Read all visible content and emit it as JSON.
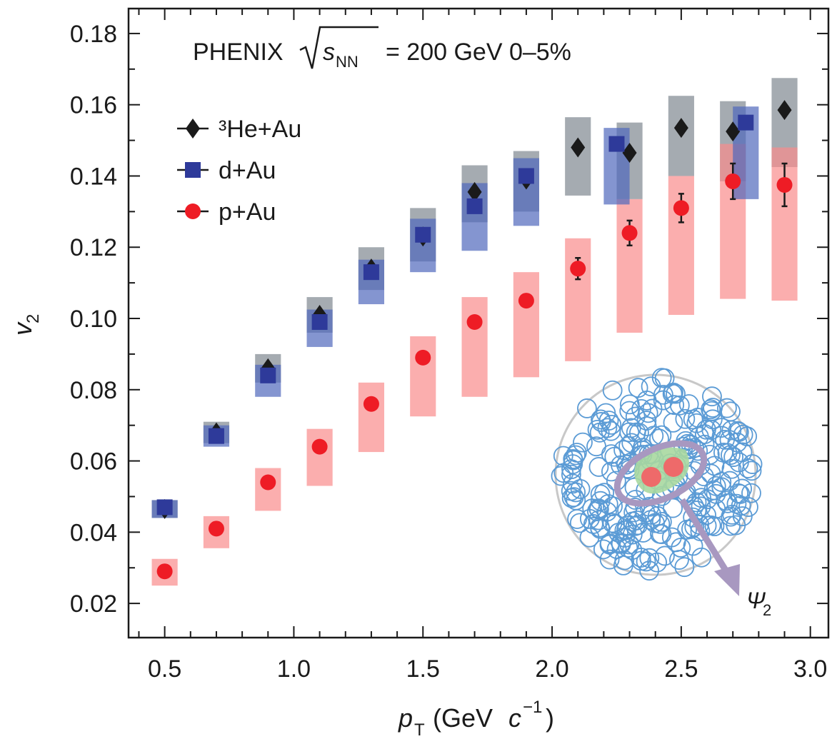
{
  "chart_data": {
    "type": "scatter",
    "title": "PHENIX",
    "title_sqrt": "s",
    "title_sub": "NN",
    "title_rest": "= 200 GeV 0–5%",
    "x_label": "p",
    "x_label_sub": "T",
    "x_label_rest": "(GeV",
    "x_label_c": "c",
    "x_label_sup": "−1",
    "x_label_end": ")",
    "y_label": "v",
    "y_label_sub": "2",
    "inset_label": "Ψ",
    "inset_label_sub": "2",
    "xlim": [
      0.36,
      3.07
    ],
    "ylim": [
      0.0104,
      0.187
    ],
    "xticks": [
      0.5,
      {
        "value": 1,
        "label": "1.0"
      },
      1.5,
      {
        "value": 2,
        "label": "2.0"
      },
      2.5,
      {
        "value": 3,
        "label": "3.0"
      }
    ],
    "xminorticks": [
      0.4,
      0.6,
      0.7,
      0.8,
      0.9,
      1.1,
      1.2,
      1.3,
      1.4,
      1.6,
      1.7,
      1.8,
      1.9,
      2.1,
      2.2,
      2.3,
      2.4,
      2.6,
      2.7,
      2.8,
      2.9
    ],
    "yticks": [
      0.02,
      0.04,
      0.06,
      0.08,
      {
        "value": 0.1,
        "label": "0.10"
      },
      0.12,
      0.14,
      0.16,
      0.18
    ],
    "yminorticks": [
      0.03,
      0.05,
      0.07,
      0.09,
      0.11,
      0.13,
      0.15,
      0.17
    ],
    "series": [
      {
        "name": "³He+Au",
        "color": "#1a1a1a",
        "marker": "diamond",
        "box_color": "#7f8890",
        "x": [
          0.5,
          0.7,
          0.9,
          1.1,
          1.3,
          1.5,
          1.7,
          1.9,
          2.1,
          2.3,
          2.5,
          2.7,
          2.9
        ],
        "values": [
          0.0465,
          0.068,
          0.086,
          0.101,
          0.114,
          0.123,
          0.1355,
          0.139,
          0.148,
          0.1465,
          0.1535,
          0.1525,
          0.1585
        ],
        "sys_low": [
          0.044,
          0.065,
          0.082,
          0.096,
          0.108,
          0.116,
          0.127,
          0.13,
          0.1345,
          0.1335,
          0.14,
          0.1385,
          0.1425
        ],
        "sys_high": [
          0.049,
          0.071,
          0.09,
          0.106,
          0.12,
          0.131,
          0.143,
          0.147,
          0.1565,
          0.155,
          0.1625,
          0.161,
          0.1675
        ]
      },
      {
        "name": "p+Au",
        "color": "#ee1c25",
        "marker": "circle",
        "box_color": "#f98c8c",
        "x": [
          0.5,
          0.7,
          0.9,
          1.1,
          1.3,
          1.5,
          1.7,
          1.9,
          2.1,
          2.3,
          2.5,
          2.7,
          2.9
        ],
        "values": [
          0.029,
          0.041,
          0.054,
          0.064,
          0.076,
          0.089,
          0.099,
          0.105,
          0.114,
          0.124,
          0.131,
          0.1385,
          0.1375
        ],
        "errors": [
          0.001,
          0.001,
          0.001,
          0.001,
          0.001,
          0.001,
          0.001,
          0.001,
          0.003,
          0.0035,
          0.004,
          0.005,
          0.006
        ],
        "sys_low": [
          0.025,
          0.0355,
          0.046,
          0.053,
          0.0625,
          0.0725,
          0.078,
          0.0835,
          0.088,
          0.096,
          0.101,
          0.1055,
          0.105
        ],
        "sys_high": [
          0.0325,
          0.0445,
          0.058,
          0.069,
          0.082,
          0.095,
          0.106,
          0.113,
          0.1225,
          0.1335,
          0.14,
          0.149,
          0.148
        ]
      },
      {
        "name": "d+Au",
        "color": "#2e3a9a",
        "marker": "square",
        "box_color": "#5068bc",
        "x": [
          0.5,
          0.7,
          0.9,
          1.1,
          1.3,
          1.5,
          1.7,
          1.9,
          2.25,
          2.75
        ],
        "values": [
          0.047,
          0.067,
          0.084,
          0.099,
          0.113,
          0.1235,
          0.1315,
          0.14,
          0.149,
          0.155
        ],
        "sys_low": [
          0.044,
          0.064,
          0.078,
          0.092,
          0.104,
          0.113,
          0.119,
          0.126,
          0.132,
          0.1335
        ],
        "sys_high": [
          0.049,
          0.07,
          0.087,
          0.1025,
          0.1165,
          0.128,
          0.138,
          0.145,
          0.1535,
          0.1595
        ]
      }
    ],
    "legend_order": [
      0,
      2,
      1
    ]
  }
}
